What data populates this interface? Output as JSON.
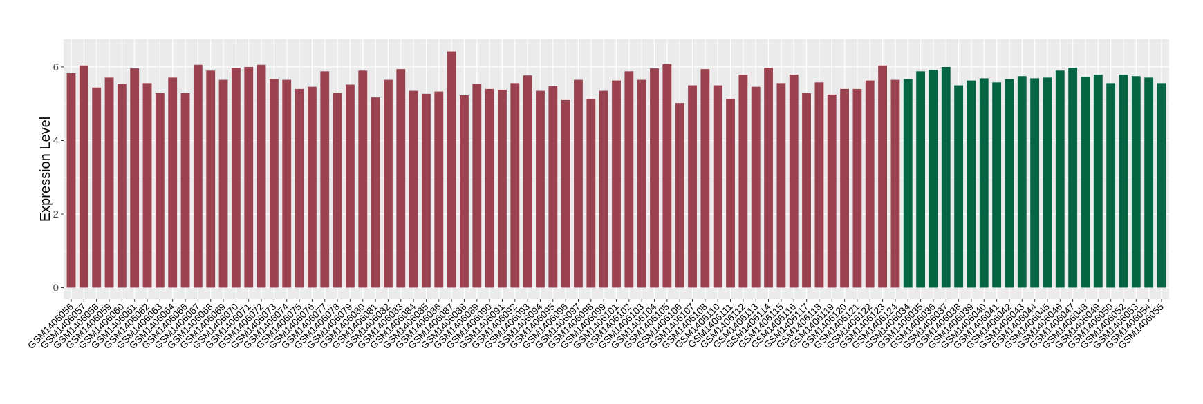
{
  "chart_data": {
    "type": "bar",
    "title": "",
    "xlabel": "",
    "ylabel": "Expression Level",
    "ylim": [
      -0.31,
      6.75
    ],
    "yticks": [
      0,
      2,
      4,
      6
    ],
    "grid": true,
    "legend": "none",
    "colors": {
      "group1": "#9A4250",
      "group2": "#056442",
      "panel": "#EBEBEB",
      "grid": "#FFFFFF"
    },
    "categories": [
      "GSM1406056",
      "GSM1406057",
      "GSM1406058",
      "GSM1406059",
      "GSM1406060",
      "GSM1406061",
      "GSM1406062",
      "GSM1406063",
      "GSM1406064",
      "GSM1406066",
      "GSM1406067",
      "GSM1406068",
      "GSM1406069",
      "GSM1406070",
      "GSM1406071",
      "GSM1406072",
      "GSM1406073",
      "GSM1406074",
      "GSM1406075",
      "GSM1406076",
      "GSM1406077",
      "GSM1406078",
      "GSM1406079",
      "GSM1406080",
      "GSM1406081",
      "GSM1406082",
      "GSM1406083",
      "GSM1406084",
      "GSM1406085",
      "GSM1406086",
      "GSM1406087",
      "GSM1406088",
      "GSM1406089",
      "GSM1406090",
      "GSM1406091",
      "GSM1406092",
      "GSM1406093",
      "GSM1406094",
      "GSM1406095",
      "GSM1406096",
      "GSM1406097",
      "GSM1406098",
      "GSM1406099",
      "GSM1406101",
      "GSM1406102",
      "GSM1406103",
      "GSM1406104",
      "GSM1406105",
      "GSM1406106",
      "GSM1406107",
      "GSM1406108",
      "GSM1406110",
      "GSM1406111",
      "GSM1406112",
      "GSM1406113",
      "GSM1406114",
      "GSM1406115",
      "GSM1406116",
      "GSM1406117",
      "GSM1406118",
      "GSM1406119",
      "GSM1406120",
      "GSM1406121",
      "GSM1406122",
      "GSM1406123",
      "GSM1406124",
      "GSM1406034",
      "GSM1406035",
      "GSM1406036",
      "GSM1406037",
      "GSM1406038",
      "GSM1406039",
      "GSM1406040",
      "GSM1406041",
      "GSM1406042",
      "GSM1406043",
      "GSM1406044",
      "GSM1406045",
      "GSM1406046",
      "GSM1406047",
      "GSM1406048",
      "GSM1406049",
      "GSM1406050",
      "GSM1406052",
      "GSM1406053",
      "GSM1406054",
      "GSM1406055"
    ],
    "values": [
      5.83,
      6.04,
      5.44,
      5.71,
      5.54,
      5.96,
      5.56,
      5.29,
      5.71,
      5.29,
      6.06,
      5.9,
      5.65,
      5.98,
      6.0,
      6.06,
      5.67,
      5.65,
      5.4,
      5.46,
      5.88,
      5.29,
      5.52,
      5.9,
      5.17,
      5.65,
      5.94,
      5.35,
      5.27,
      5.33,
      6.42,
      5.23,
      5.54,
      5.4,
      5.38,
      5.56,
      5.77,
      5.35,
      5.48,
      5.1,
      5.65,
      5.13,
      5.35,
      5.63,
      5.88,
      5.65,
      5.96,
      6.08,
      5.02,
      5.5,
      5.94,
      5.5,
      5.13,
      5.79,
      5.46,
      5.98,
      5.56,
      5.79,
      5.29,
      5.58,
      5.25,
      5.4,
      5.4,
      5.63,
      6.04,
      5.65,
      5.67,
      5.88,
      5.92,
      6.0,
      5.5,
      5.63,
      5.69,
      5.58,
      5.67,
      5.75,
      5.69,
      5.71,
      5.9,
      5.98,
      5.73,
      5.79,
      5.56,
      5.79,
      5.75,
      5.71,
      5.56
    ],
    "groups": [
      "group1",
      "group1",
      "group1",
      "group1",
      "group1",
      "group1",
      "group1",
      "group1",
      "group1",
      "group1",
      "group1",
      "group1",
      "group1",
      "group1",
      "group1",
      "group1",
      "group1",
      "group1",
      "group1",
      "group1",
      "group1",
      "group1",
      "group1",
      "group1",
      "group1",
      "group1",
      "group1",
      "group1",
      "group1",
      "group1",
      "group1",
      "group1",
      "group1",
      "group1",
      "group1",
      "group1",
      "group1",
      "group1",
      "group1",
      "group1",
      "group1",
      "group1",
      "group1",
      "group1",
      "group1",
      "group1",
      "group1",
      "group1",
      "group1",
      "group1",
      "group1",
      "group1",
      "group1",
      "group1",
      "group1",
      "group1",
      "group1",
      "group1",
      "group1",
      "group1",
      "group1",
      "group1",
      "group1",
      "group1",
      "group1",
      "group1",
      "group2",
      "group2",
      "group2",
      "group2",
      "group2",
      "group2",
      "group2",
      "group2",
      "group2",
      "group2",
      "group2",
      "group2",
      "group2",
      "group2",
      "group2",
      "group2",
      "group2",
      "group2",
      "group2",
      "group2",
      "group2"
    ]
  }
}
